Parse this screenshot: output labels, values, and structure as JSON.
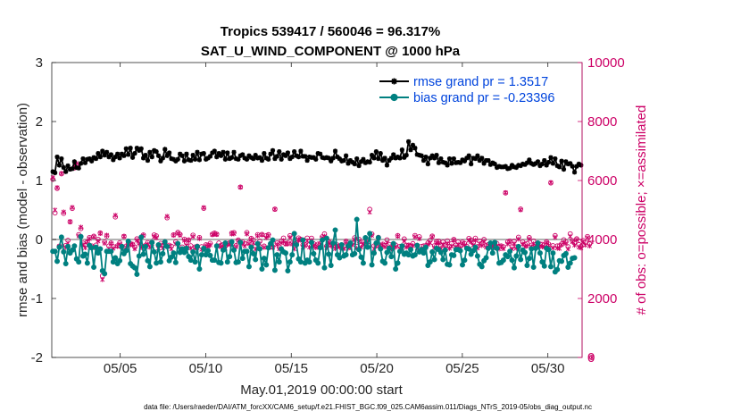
{
  "chart_data": {
    "type": "line",
    "title_line1": "Tropics 539417 / 560046 = 96.317%",
    "title_line2": "SAT_U_WIND_COMPONENT @ 1000 hPa",
    "xlabel": "May.01,2019 00:00:00 start",
    "ylabel_left": "rmse and bias (model - observation)",
    "ylabel_right": "# of obs: o=possible; ×=assimilated",
    "footnote": "data file: /Users/raeder/DAI/ATM_forcXX/CAM6_setup/f.e21.FHIST_BGC.f09_025.CAM6assim.011/Diags_NTrS_2019-05/obs_diag_output.nc",
    "xlim": [
      1.0,
      32.0
    ],
    "ylim_left": [
      -2,
      3
    ],
    "ylim_right": [
      0,
      10000
    ],
    "x_ticks": [
      5,
      10,
      15,
      20,
      25,
      30
    ],
    "x_tick_labels": [
      "05/05",
      "05/10",
      "05/15",
      "05/20",
      "05/25",
      "05/30"
    ],
    "y_ticks_left": [
      -2,
      -1,
      0,
      1,
      2,
      3
    ],
    "y_tick_labels_left": [
      "-2",
      "-1",
      "0",
      "1",
      "2",
      "3"
    ],
    "y_ticks_right": [
      0,
      2000,
      4000,
      6000,
      8000,
      10000
    ],
    "y_tick_labels_right": [
      "0",
      "2000",
      "4000",
      "6000",
      "8000",
      "10000"
    ],
    "zero_line": 0,
    "colors": {
      "rmse": "#000000",
      "bias": "#008080",
      "obs": "#cc0066",
      "zero_line": "#b3b3b3",
      "legend_text": "#0044dd"
    },
    "series": [
      {
        "name": "rmse grand pr = 1.3517",
        "values": [
          1.15,
          1.13,
          1.4,
          1.26,
          1.37,
          1.22,
          1.15,
          1.25,
          1.19,
          1.2,
          1.32,
          1.22,
          1.21,
          1.29,
          1.37,
          1.3,
          1.36,
          1.37,
          1.33,
          1.39,
          1.37,
          1.46,
          1.4,
          1.5,
          1.43,
          1.48,
          1.4,
          1.44,
          1.35,
          1.4,
          1.45,
          1.38,
          1.45,
          1.42,
          1.54,
          1.44,
          1.55,
          1.39,
          1.46,
          1.55,
          1.51,
          1.54,
          1.38,
          1.43,
          1.34,
          1.48,
          1.4,
          1.51,
          1.49,
          1.42,
          1.33,
          1.38,
          1.53,
          1.42,
          1.47,
          1.37,
          1.36,
          1.33,
          1.36,
          1.45,
          1.42,
          1.33,
          1.45,
          1.35,
          1.34,
          1.43,
          1.36,
          1.48,
          1.35,
          1.45,
          1.46,
          1.36,
          1.38,
          1.41,
          1.47,
          1.5,
          1.4,
          1.46,
          1.42,
          1.48,
          1.36,
          1.47,
          1.37,
          1.39,
          1.48,
          1.37,
          1.36,
          1.42,
          1.44,
          1.38,
          1.36,
          1.42,
          1.39,
          1.37,
          1.43,
          1.38,
          1.39,
          1.34,
          1.46,
          1.38,
          1.36,
          1.45,
          1.51,
          1.37,
          1.41,
          1.49,
          1.36,
          1.44,
          1.42,
          1.47,
          1.37,
          1.4,
          1.49,
          1.42,
          1.4,
          1.5,
          1.41,
          1.41,
          1.34,
          1.4,
          1.39,
          1.39,
          1.36,
          1.46,
          1.45,
          1.39,
          1.38,
          1.39,
          1.38,
          1.33,
          1.38,
          1.5,
          1.4,
          1.37,
          1.33,
          1.34,
          1.42,
          1.29,
          1.34,
          1.31,
          1.28,
          1.37,
          1.25,
          1.32,
          1.36,
          1.3,
          1.32,
          1.31,
          1.43,
          1.38,
          1.49,
          1.37,
          1.46,
          1.34,
          1.38,
          1.26,
          1.34,
          1.38,
          1.44,
          1.38,
          1.4,
          1.38,
          1.52,
          1.39,
          1.43,
          1.66,
          1.52,
          1.6,
          1.55,
          1.44,
          1.43,
          1.42,
          1.34,
          1.4,
          1.28,
          1.38,
          1.42,
          1.38,
          1.43,
          1.3,
          1.37,
          1.31,
          1.3,
          1.26,
          1.37,
          1.29,
          1.37,
          1.3,
          1.31,
          1.3,
          1.35,
          1.33,
          1.38,
          1.42,
          1.28,
          1.38,
          1.37,
          1.42,
          1.34,
          1.38,
          1.29,
          1.34,
          1.34,
          1.27,
          1.3,
          1.28,
          1.22,
          1.24,
          1.23,
          1.23,
          1.24,
          1.2,
          1.21,
          1.26,
          1.23,
          1.22,
          1.26,
          1.25,
          1.28,
          1.27,
          1.3,
          1.35,
          1.29,
          1.27,
          1.29,
          1.32,
          1.25,
          1.28,
          1.34,
          1.26,
          1.31,
          1.39,
          1.29,
          1.37,
          1.25,
          1.23,
          1.33,
          1.19,
          1.32,
          1.28,
          1.29,
          1.24,
          1.14,
          1.24,
          1.28,
          1.26
        ]
      },
      {
        "name": "bias grand pr = -0.23396",
        "values": [
          -0.2,
          -0.2,
          -0.37,
          -0.13,
          0.04,
          -0.21,
          -0.41,
          -0.12,
          -0.23,
          -0.18,
          -0.11,
          -0.33,
          -0.38,
          0.05,
          -0.28,
          -0.25,
          -0.4,
          -0.1,
          -0.14,
          -0.47,
          -0.13,
          -0.23,
          -0.16,
          -0.53,
          -0.58,
          -0.2,
          -0.2,
          -0.2,
          -0.38,
          -0.31,
          -0.41,
          -0.36,
          -0.12,
          -0.24,
          -0.19,
          -0.03,
          -0.41,
          -0.45,
          -0.48,
          -0.59,
          -0.28,
          0.04,
          -0.25,
          -0.12,
          -0.36,
          -0.46,
          -0.05,
          -0.21,
          -0.4,
          -0.09,
          -0.38,
          -0.24,
          -0.04,
          -0.12,
          -0.36,
          -0.3,
          -0.23,
          -0.39,
          -0.07,
          -0.22,
          -0.16,
          -0.22,
          -0.15,
          -0.29,
          -0.35,
          -0.21,
          -0.38,
          -0.12,
          -0.5,
          -0.26,
          -0.15,
          -0.26,
          -0.19,
          -0.27,
          -0.35,
          -0.35,
          -0.11,
          -0.39,
          -0.4,
          -0.18,
          -0.06,
          -0.38,
          -0.29,
          -0.04,
          -0.18,
          -0.39,
          -0.38,
          -0.05,
          -0.32,
          -0.2,
          -0.2,
          -0.46,
          -0.13,
          -0.24,
          -0.34,
          -0.07,
          -0.16,
          -0.5,
          -0.32,
          -0.43,
          -0.14,
          -0.07,
          -0.01,
          -0.52,
          -0.26,
          -0.38,
          -0.16,
          -0.21,
          -0.23,
          -0.53,
          -0.38,
          -0.26,
          0.1,
          -0.09,
          -0.33,
          -0.38,
          -0.01,
          -0.4,
          -0.35,
          -0.38,
          -0.05,
          -0.24,
          -0.35,
          -0.4,
          -0.14,
          -0.01,
          -0.48,
          0.02,
          -0.25,
          -0.44,
          -0.06,
          0.16,
          -0.26,
          -0.31,
          -0.09,
          -0.28,
          -0.26,
          -0.11,
          -0.06,
          -0.26,
          -0.24,
          0.34,
          -0.17,
          -0.3,
          -0.4,
          0.03,
          -0.13,
          0.1,
          -0.43,
          -0.23,
          -0.06,
          0.03,
          -0.16,
          -0.37,
          -0.4,
          -0.22,
          -0.15,
          -0.29,
          -0.07,
          -0.5,
          -0.4,
          -0.2,
          -0.11,
          -0.25,
          -0.23,
          -0.26,
          -0.17,
          -0.28,
          -0.26,
          -0.1,
          -0.21,
          -0.17,
          -0.23,
          -0.13,
          -0.44,
          -0.38,
          -0.21,
          -0.34,
          -0.15,
          -0.17,
          -0.22,
          -0.34,
          -0.18,
          -0.42,
          -0.43,
          -0.26,
          -0.27,
          -0.17,
          -0.17,
          -0.19,
          -0.43,
          -0.35,
          -0.15,
          -0.16,
          -0.25,
          -0.19,
          -0.13,
          -0.28,
          -0.42,
          -0.46,
          -0.36,
          -0.31,
          -0.15,
          -0.06,
          -0.23,
          -0.05,
          -0.15,
          -0.4,
          -0.39,
          -0.35,
          -0.26,
          -0.29,
          -0.2,
          -0.35,
          -0.48,
          -0.28,
          -0.12,
          -0.34,
          -0.18,
          -0.22,
          -0.44,
          -0.32,
          -0.16,
          -0.47,
          -0.15,
          -0.06,
          -0.23,
          -0.38,
          -0.45,
          -0.15,
          -0.17,
          -0.46,
          -0.23,
          -0.55,
          -0.51,
          -0.36,
          -0.37,
          -0.27,
          -0.24,
          -0.47,
          -0.4,
          -0.32,
          -0.31
        ]
      },
      {
        "name": "possible",
        "marker": "o",
        "values": [
          6042,
          4901,
          5733,
          3775,
          6228,
          4888,
          3797,
          3970,
          4599,
          5054,
          6428,
          6529,
          4165,
          4372,
          3874,
          3802,
          3913,
          4067,
          3782,
          4112,
          3807,
          4006,
          4219,
          2765,
          3917,
          4119,
          3779,
          3881,
          3758,
          4766,
          3786,
          3886,
          3771,
          4105,
          3774,
          3864,
          3855,
          3836,
          3742,
          4022,
          3906,
          3795,
          4152,
          3803,
          3896,
          3824,
          3905,
          4154,
          4121,
          3785,
          3868,
          3794,
          3901,
          4737,
          3803,
          3770,
          4155,
          3920,
          4241,
          4173,
          3745,
          4010,
          3882,
          3987,
          3784,
          4146,
          3747,
          3772,
          4067,
          3755,
          5058,
          3818,
          3807,
          3868,
          4180,
          4216,
          4180,
          3879,
          3791,
          3826,
          3775,
          3860,
          3887,
          4215,
          4233,
          3791,
          3982,
          5776,
          3913,
          3860,
          4236,
          3900,
          4037,
          3982,
          3765,
          4164,
          3940,
          4173,
          3776,
          4129,
          4162,
          3847,
          3751,
          5027,
          3881,
          3744,
          3947,
          4048,
          3863,
          3881,
          4128,
          3878,
          3770,
          3882,
          4050,
          4003,
          3815,
          3818,
          4048,
          3821,
          4044,
          3855,
          3789,
          3842,
          3859,
          4092,
          4189,
          3774,
          3927,
          3832,
          3788,
          3786,
          3813,
          3776,
          3801,
          3763,
          3941,
          3759,
          3815,
          3885,
          4058,
          3765,
          4006,
          3802,
          3904,
          3849,
          3982,
          5022,
          4187,
          3782,
          3806,
          4072,
          3768,
          3841,
          3800,
          3986,
          3832,
          3754,
          3792,
          3810,
          4133,
          3765,
          3773,
          4018,
          3801,
          3808,
          3787,
          3859,
          4135,
          3798,
          4091,
          3765,
          3781,
          3790,
          3883,
          3971,
          4116,
          3786,
          3931,
          3941,
          3783,
          3909,
          3783,
          3952,
          3760,
          3862,
          4002,
          3808,
          3914,
          3777,
          3913,
          3865,
          3767,
          4036,
          3975,
          3884,
          4043,
          3760,
          3943,
          3866,
          3999,
          3787,
          3829,
          3835,
          3816,
          3794,
          3860,
          3760,
          3780,
          3755,
          5579,
          3917,
          3947,
          3753,
          3935,
          3752,
          4077,
          5031,
          3911,
          3841,
          3860,
          4064,
          3804,
          3949,
          3831,
          3840,
          3846,
          3834,
          3815,
          3923,
          3841,
          5919,
          3788,
          4132,
          3782,
          3784,
          3850,
          3989,
          3922,
          3754,
          4192,
          3956,
          3878,
          4022,
          3829,
          3764,
          3964,
          3898,
          4100,
          3848,
          0
        ]
      },
      {
        "name": "assimilated",
        "marker": "x",
        "values": [
          6100,
          5000,
          5762,
          3758,
          6241,
          4935,
          3733,
          3876,
          4604,
          5089,
          6455,
          6583,
          4114,
          4419,
          3821,
          3722,
          3928,
          4026,
          3756,
          4090,
          3712,
          3943,
          4206,
          2639,
          3873,
          4147,
          3689,
          3856,
          3697,
          4820,
          3763,
          3836,
          3736,
          4105,
          3736,
          3852,
          3817,
          3822,
          3681,
          3971,
          3869,
          3726,
          4134,
          3756,
          3839,
          3735,
          3865,
          4097,
          4059,
          3703,
          3807,
          3708,
          3881,
          4786,
          3765,
          3682,
          4148,
          3853,
          4206,
          4140,
          3682,
          3966,
          3801,
          3964,
          3705,
          4096,
          3728,
          3714,
          4030,
          3663,
          5081,
          3777,
          3770,
          3810,
          4161,
          4202,
          4172,
          3781,
          3747,
          3749,
          3692,
          3841,
          3827,
          4187,
          4194,
          3752,
          3954,
          5773,
          3849,
          3783,
          4187,
          3853,
          4003,
          3883,
          3676,
          4124,
          3854,
          4155,
          3729,
          4062,
          4121,
          3818,
          3725,
          5027,
          3830,
          3684,
          3886,
          3959,
          3843,
          3848,
          4068,
          3846,
          3680,
          3868,
          3999,
          3974,
          3743,
          3789,
          3955,
          3735,
          3968,
          3783,
          3723,
          3754,
          3819,
          4051,
          4108,
          3721,
          3903,
          3793,
          3749,
          3686,
          3769,
          3740,
          3708,
          3690,
          3916,
          3708,
          3732,
          3822,
          3993,
          3699,
          3939,
          3736,
          3856,
          3778,
          3912,
          4928,
          4136,
          3681,
          3770,
          4048,
          3706,
          3825,
          3745,
          3893,
          3733,
          3685,
          3728,
          3749,
          4111,
          3695,
          3705,
          3950,
          3737,
          3780,
          3714,
          3788,
          4088,
          3716,
          4025,
          3676,
          3705,
          3725,
          3830,
          3888,
          4089,
          3727,
          3885,
          3881,
          3703,
          3835,
          3707,
          3867,
          3699,
          3778,
          3974,
          3747,
          3834,
          3708,
          3868,
          3805,
          3713,
          3972,
          3914,
          3807,
          3970,
          3708,
          3853,
          3795,
          3929,
          3737,
          3804,
          3757,
          3781,
          3721,
          3789,
          3681,
          3750,
          3687,
          5586,
          3850,
          3913,
          3680,
          3858,
          3704,
          4012,
          5003,
          3842,
          3759,
          3780,
          4011,
          3753,
          3855,
          3796,
          3779,
          3779,
          3753,
          3745,
          3895,
          3800,
          5935,
          3716,
          4074,
          3707,
          3695,
          3817,
          3898,
          3864,
          3679,
          4104,
          3920,
          3807,
          3987,
          3741,
          3714,
          3919,
          3812,
          4055,
          3782,
          0
        ]
      }
    ]
  }
}
